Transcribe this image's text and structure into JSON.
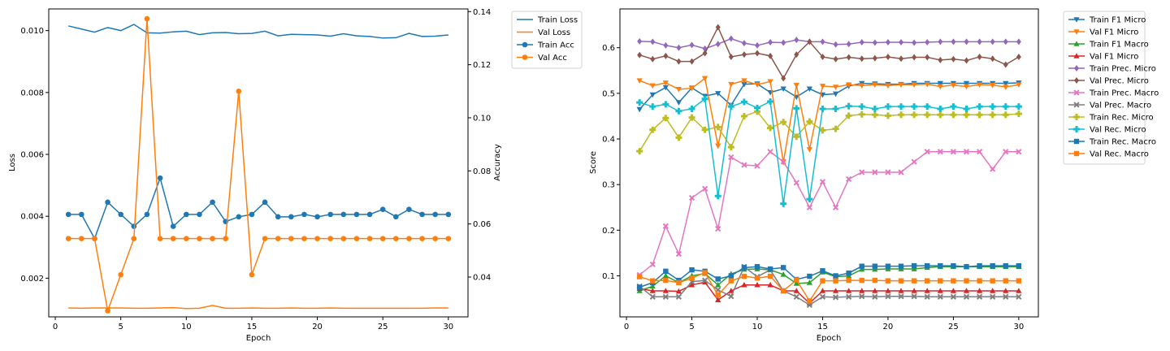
{
  "chart_data": [
    {
      "type": "line",
      "xlabel": "Epoch",
      "ylabel": "Loss",
      "y2label": "Accuracy",
      "xlim": [
        -0.5,
        31.5
      ],
      "ylim": [
        0.00075,
        0.0107
      ],
      "y2lim": [
        0.025,
        0.141
      ],
      "x_ticks": [
        0,
        5,
        10,
        15,
        20,
        25,
        30
      ],
      "y_ticks": [
        0.002,
        0.004,
        0.006,
        0.008,
        0.01
      ],
      "y_tick_labels": [
        "0.002",
        "0.004",
        "0.006",
        "0.008",
        "0.010"
      ],
      "y2_ticks": [
        0.04,
        0.06,
        0.08,
        0.1,
        0.12,
        0.14
      ],
      "y2_tick_labels": [
        "0.04",
        "0.06",
        "0.08",
        "0.10",
        "0.12",
        "0.14"
      ],
      "legend_position": "outside-top-right",
      "x": [
        1,
        2,
        3,
        4,
        5,
        6,
        7,
        8,
        9,
        10,
        11,
        12,
        13,
        14,
        15,
        16,
        17,
        18,
        19,
        20,
        21,
        22,
        23,
        24,
        25,
        26,
        27,
        28,
        29,
        30
      ],
      "series": [
        {
          "name": "Train Loss",
          "axis": "left",
          "color": "#1f77b4",
          "marker": "none",
          "values": [
            0.01015,
            0.01005,
            0.00995,
            0.0101,
            0.01,
            0.0102,
            0.00993,
            0.00992,
            0.00996,
            0.00998,
            0.00987,
            0.00993,
            0.00994,
            0.0099,
            0.00991,
            0.00998,
            0.00983,
            0.00988,
            0.00987,
            0.00986,
            0.00982,
            0.0099,
            0.00983,
            0.00981,
            0.00976,
            0.00977,
            0.00991,
            0.00981,
            0.00982,
            0.00986
          ]
        },
        {
          "name": "Val Loss",
          "axis": "left",
          "color": "#ff7f0e",
          "marker": "none",
          "values": [
            0.00104,
            0.00103,
            0.00104,
            0.00104,
            0.00104,
            0.00103,
            0.00103,
            0.00104,
            0.00105,
            0.00102,
            0.00103,
            0.00112,
            0.00103,
            0.00103,
            0.00104,
            0.00103,
            0.00103,
            0.00104,
            0.00103,
            0.00103,
            0.00104,
            0.00103,
            0.00103,
            0.00103,
            0.00103,
            0.00103,
            0.00103,
            0.00103,
            0.00104,
            0.00104
          ]
        },
        {
          "name": "Train Acc",
          "axis": "right",
          "color": "#1f77b4",
          "marker": "circle",
          "values": [
            0.0636,
            0.0636,
            0.0545,
            0.0682,
            0.0636,
            0.0591,
            0.0636,
            0.0773,
            0.0591,
            0.0636,
            0.0636,
            0.0682,
            0.0609,
            0.0627,
            0.0636,
            0.0682,
            0.0627,
            0.0627,
            0.0636,
            0.0627,
            0.0636,
            0.0636,
            0.0636,
            0.0636,
            0.0655,
            0.0627,
            0.0655,
            0.0636,
            0.0636,
            0.0636
          ]
        },
        {
          "name": "Val Acc",
          "axis": "right",
          "color": "#ff7f0e",
          "marker": "circle",
          "values": [
            0.0545,
            0.0545,
            0.0545,
            0.0273,
            0.0409,
            0.0545,
            0.1373,
            0.0545,
            0.0545,
            0.0545,
            0.0545,
            0.0545,
            0.0545,
            0.11,
            0.0409,
            0.0545,
            0.0545,
            0.0545,
            0.0545,
            0.0545,
            0.0545,
            0.0545,
            0.0545,
            0.0545,
            0.0545,
            0.0545,
            0.0545,
            0.0545,
            0.0545,
            0.0545
          ]
        }
      ]
    },
    {
      "type": "line",
      "xlabel": "Epoch",
      "ylabel": "Score",
      "xlim": [
        -0.5,
        31.5
      ],
      "ylim": [
        0.01,
        0.685
      ],
      "x_ticks": [
        0,
        5,
        10,
        15,
        20,
        25,
        30
      ],
      "y_ticks": [
        0.1,
        0.2,
        0.3,
        0.4,
        0.5,
        0.6
      ],
      "y_tick_labels": [
        "0.1",
        "0.2",
        "0.3",
        "0.4",
        "0.5",
        "0.6"
      ],
      "legend_position": "outside-top-right",
      "x": [
        1,
        2,
        3,
        4,
        5,
        6,
        7,
        8,
        9,
        10,
        11,
        12,
        13,
        14,
        15,
        16,
        17,
        18,
        19,
        20,
        21,
        22,
        23,
        24,
        25,
        26,
        27,
        28,
        29,
        30
      ],
      "series": [
        {
          "name": "Train F1 Micro",
          "color": "#1f77b4",
          "marker": "tri-down",
          "values": [
            0.465,
            0.497,
            0.513,
            0.48,
            0.512,
            0.494,
            0.5,
            0.474,
            0.52,
            0.521,
            0.502,
            0.51,
            0.492,
            0.51,
            0.497,
            0.499,
            0.516,
            0.522,
            0.521,
            0.52,
            0.52,
            0.522,
            0.522,
            0.522,
            0.522,
            0.522,
            0.522,
            0.522,
            0.522,
            0.523
          ]
        },
        {
          "name": "Val F1 Micro",
          "color": "#ff7f0e",
          "marker": "tri-down",
          "values": [
            0.528,
            0.517,
            0.523,
            0.509,
            0.511,
            0.533,
            0.385,
            0.52,
            0.528,
            0.519,
            0.526,
            0.349,
            0.518,
            0.377,
            0.516,
            0.514,
            0.519,
            0.517,
            0.519,
            0.517,
            0.519,
            0.519,
            0.52,
            0.515,
            0.518,
            0.515,
            0.519,
            0.518,
            0.514,
            0.519
          ]
        },
        {
          "name": "Train F1 Macro",
          "color": "#2ca02c",
          "marker": "tri-up",
          "values": [
            0.067,
            0.077,
            0.1,
            0.085,
            0.1,
            0.105,
            0.08,
            0.104,
            0.114,
            0.115,
            0.113,
            0.103,
            0.083,
            0.085,
            0.108,
            0.098,
            0.1,
            0.114,
            0.114,
            0.115,
            0.115,
            0.115,
            0.118,
            0.12,
            0.12,
            0.12,
            0.12,
            0.12,
            0.12,
            0.12
          ]
        },
        {
          "name": "Val F1 Micro",
          "color": "#d62728",
          "marker": "tri-up",
          "values": [
            0.072,
            0.067,
            0.067,
            0.066,
            0.08,
            0.086,
            0.047,
            0.067,
            0.08,
            0.08,
            0.08,
            0.067,
            0.067,
            0.04,
            0.067,
            0.067,
            0.067,
            0.067,
            0.067,
            0.067,
            0.067,
            0.067,
            0.067,
            0.067,
            0.067,
            0.067,
            0.067,
            0.067,
            0.067,
            0.067
          ]
        },
        {
          "name": "Train Prec. Micro",
          "color": "#9467bd",
          "marker": "diamond",
          "values": [
            0.614,
            0.613,
            0.605,
            0.6,
            0.606,
            0.598,
            0.608,
            0.62,
            0.61,
            0.605,
            0.612,
            0.611,
            0.617,
            0.613,
            0.613,
            0.607,
            0.608,
            0.612,
            0.611,
            0.612,
            0.612,
            0.611,
            0.612,
            0.613,
            0.613,
            0.613,
            0.613,
            0.613,
            0.613,
            0.613
          ]
        },
        {
          "name": "Val Prec. Micro",
          "color": "#8c564b",
          "marker": "diamond",
          "values": [
            0.584,
            0.575,
            0.582,
            0.57,
            0.57,
            0.588,
            0.645,
            0.58,
            0.585,
            0.588,
            0.582,
            0.533,
            0.585,
            0.613,
            0.58,
            0.575,
            0.579,
            0.576,
            0.577,
            0.58,
            0.576,
            0.579,
            0.579,
            0.573,
            0.575,
            0.572,
            0.58,
            0.576,
            0.563,
            0.58
          ]
        },
        {
          "name": "Train Prec. Macro",
          "color": "#e377c2",
          "marker": "x",
          "values": [
            0.102,
            0.125,
            0.209,
            0.148,
            0.271,
            0.291,
            0.203,
            0.36,
            0.343,
            0.341,
            0.372,
            0.35,
            0.304,
            0.25,
            0.306,
            0.25,
            0.312,
            0.327,
            0.327,
            0.327,
            0.327,
            0.35,
            0.372,
            0.372,
            0.372,
            0.372,
            0.372,
            0.334,
            0.372,
            0.372
          ]
        },
        {
          "name": "Val Prec. Macro",
          "color": "#7f7f7f",
          "marker": "x",
          "values": [
            0.077,
            0.054,
            0.054,
            0.054,
            0.087,
            0.09,
            0.069,
            0.055,
            0.12,
            0.098,
            0.113,
            0.067,
            0.054,
            0.036,
            0.054,
            0.053,
            0.054,
            0.055,
            0.054,
            0.055,
            0.055,
            0.055,
            0.054,
            0.054,
            0.054,
            0.054,
            0.054,
            0.054,
            0.054,
            0.054
          ]
        },
        {
          "name": "Train Rec. Micro",
          "color": "#bcbd22",
          "marker": "plus",
          "values": [
            0.373,
            0.42,
            0.446,
            0.403,
            0.447,
            0.42,
            0.426,
            0.382,
            0.45,
            0.46,
            0.424,
            0.437,
            0.405,
            0.438,
            0.419,
            0.422,
            0.451,
            0.454,
            0.453,
            0.451,
            0.453,
            0.453,
            0.453,
            0.453,
            0.453,
            0.453,
            0.453,
            0.453,
            0.453,
            0.455
          ]
        },
        {
          "name": "Val Rec. Micro",
          "color": "#17becf",
          "marker": "plus",
          "values": [
            0.48,
            0.471,
            0.476,
            0.461,
            0.466,
            0.488,
            0.275,
            0.471,
            0.481,
            0.468,
            0.482,
            0.258,
            0.467,
            0.268,
            0.466,
            0.466,
            0.472,
            0.471,
            0.466,
            0.471,
            0.471,
            0.471,
            0.471,
            0.466,
            0.471,
            0.466,
            0.471,
            0.471,
            0.471,
            0.471
          ]
        },
        {
          "name": "Train Rec. Macro",
          "color": "#1f77b4",
          "marker": "square",
          "values": [
            0.075,
            0.085,
            0.11,
            0.09,
            0.113,
            0.11,
            0.093,
            0.1,
            0.118,
            0.12,
            0.115,
            0.118,
            0.092,
            0.099,
            0.111,
            0.1,
            0.106,
            0.121,
            0.121,
            0.121,
            0.121,
            0.122,
            0.122,
            0.122,
            0.122,
            0.12,
            0.122,
            0.122,
            0.122,
            0.122
          ]
        },
        {
          "name": "Val Rec. Macro",
          "color": "#ff7f0e",
          "marker": "square",
          "values": [
            0.098,
            0.089,
            0.09,
            0.085,
            0.095,
            0.107,
            0.058,
            0.089,
            0.099,
            0.095,
            0.099,
            0.067,
            0.091,
            0.045,
            0.089,
            0.089,
            0.09,
            0.09,
            0.09,
            0.089,
            0.089,
            0.089,
            0.089,
            0.089,
            0.089,
            0.089,
            0.089,
            0.089,
            0.089,
            0.089
          ]
        }
      ]
    }
  ]
}
